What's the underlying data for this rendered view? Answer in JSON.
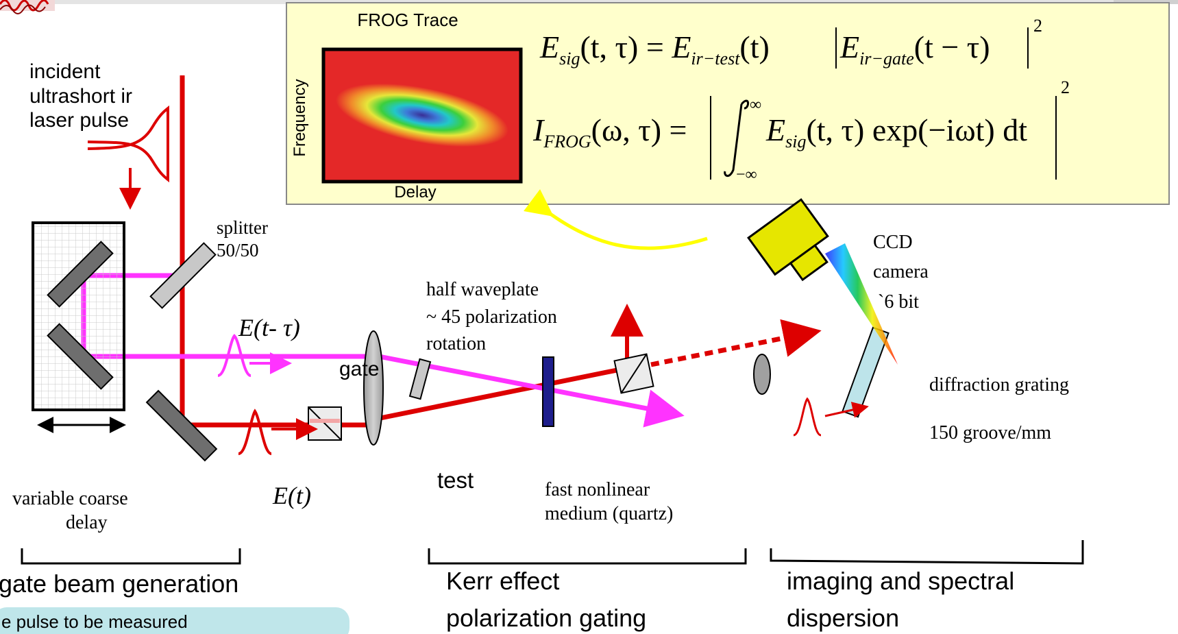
{
  "frog_panel": {
    "trace_title": "FROG Trace",
    "y_label": "Frequency",
    "x_label": "Delay",
    "eq1": {
      "lhs": "E",
      "lhs_sub": "sig",
      "lhs_args": "(t, τ) = ",
      "e1": "E",
      "e1_sub": "ir−test",
      "e1_args": "(t)",
      "e2": "E",
      "e2_sub": "ir−gate",
      "e2_args": "(t − τ)",
      "power": "2"
    },
    "eq2": {
      "lhs": "I",
      "lhs_sub": "FROG",
      "lhs_args": "(ω, τ) = ",
      "upper": "∞",
      "lower": "−∞",
      "integrand": "E",
      "integrand_sub": "sig",
      "integrand_args": "(t, τ) exp(−iωt) dt",
      "power": "2"
    }
  },
  "labels": {
    "incident": [
      "incident",
      "ultrashort ir",
      "laser pulse"
    ],
    "splitter": [
      "splitter",
      "50/50"
    ],
    "e_gate": "E(t- τ)",
    "e_test": "E(t)",
    "gate": "gate",
    "test": "test",
    "half_waveplate": [
      "half waveplate",
      "~ 45 polarization",
      "rotation"
    ],
    "ccd": [
      "CCD",
      "camera",
      "`6 bit"
    ],
    "grating": "diffraction grating",
    "groove": "150 groove/mm",
    "medium": [
      "fast nonlinear",
      "medium (quartz)"
    ],
    "delay": [
      "variable  coarse",
      "delay"
    ],
    "section_gate": "gate beam generation",
    "section_kerr": [
      "Kerr effect",
      "polarization gating"
    ],
    "section_imaging": [
      "imaging and spectral",
      "dispersion"
    ],
    "footer_note": "e pulse to be measured"
  },
  "colors": {
    "red_beam": "#dd0000",
    "magenta_beam": "#ff33ff",
    "panel_bg": "#ffffcc",
    "ccd_yellow": "#e6e600",
    "grating_cyan": "#bde4ea",
    "medium_navy": "#1e1e8c",
    "note_bg": "#bfe6ea"
  }
}
